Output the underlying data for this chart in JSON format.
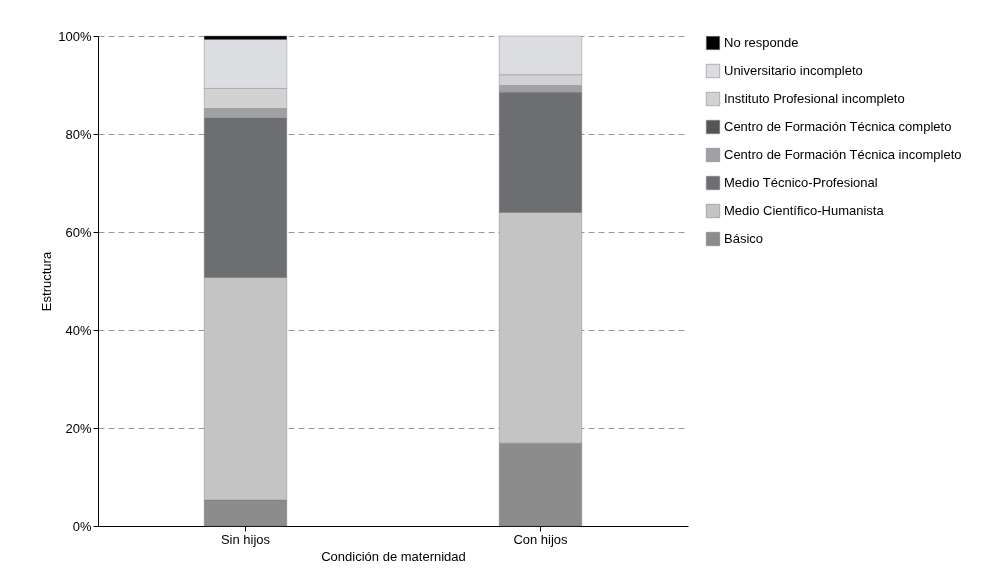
{
  "chart_data": {
    "type": "bar",
    "stacked": true,
    "xlabel": "Condición de maternidad",
    "ylabel": "Estructura",
    "categories": [
      "Sin hijos",
      "Con hijos"
    ],
    "series": [
      {
        "name": "Básico",
        "color": "#8c8c8c",
        "values": [
          5.3,
          16.9
        ]
      },
      {
        "name": "Medio Científico-Humanista",
        "color": "#c4c4c4",
        "values": [
          45.4,
          47.1
        ]
      },
      {
        "name": "Medio Técnico-Profesional",
        "color": "#6d6e71",
        "values": [
          32.6,
          24.5
        ]
      },
      {
        "name": "Centro de Formación Técnica incompleto",
        "color": "#a0a1a4",
        "values": [
          1.9,
          1.4
        ]
      },
      {
        "name": "Centro de Formación Técnica completo",
        "color": "#555555",
        "values": [
          0,
          0
        ]
      },
      {
        "name": "Instituto Profesional incompleto",
        "color": "#d2d2d2",
        "values": [
          4.1,
          2.2
        ]
      },
      {
        "name": "Universitario incompleto",
        "color": "#dcdde0",
        "values": [
          10.0,
          7.9
        ]
      },
      {
        "name": "No responde",
        "color": "#000000",
        "values": [
          0.7,
          0
        ]
      }
    ],
    "ylim": [
      0,
      100
    ],
    "yticks": [
      {
        "value": 0,
        "label": "0%"
      },
      {
        "value": 20,
        "label": "20%"
      },
      {
        "value": 40,
        "label": "40%"
      },
      {
        "value": 60,
        "label": "60%"
      },
      {
        "value": 80,
        "label": "80%"
      },
      {
        "value": 100,
        "label": "100%"
      }
    ],
    "grid": "y",
    "legend": "right"
  }
}
